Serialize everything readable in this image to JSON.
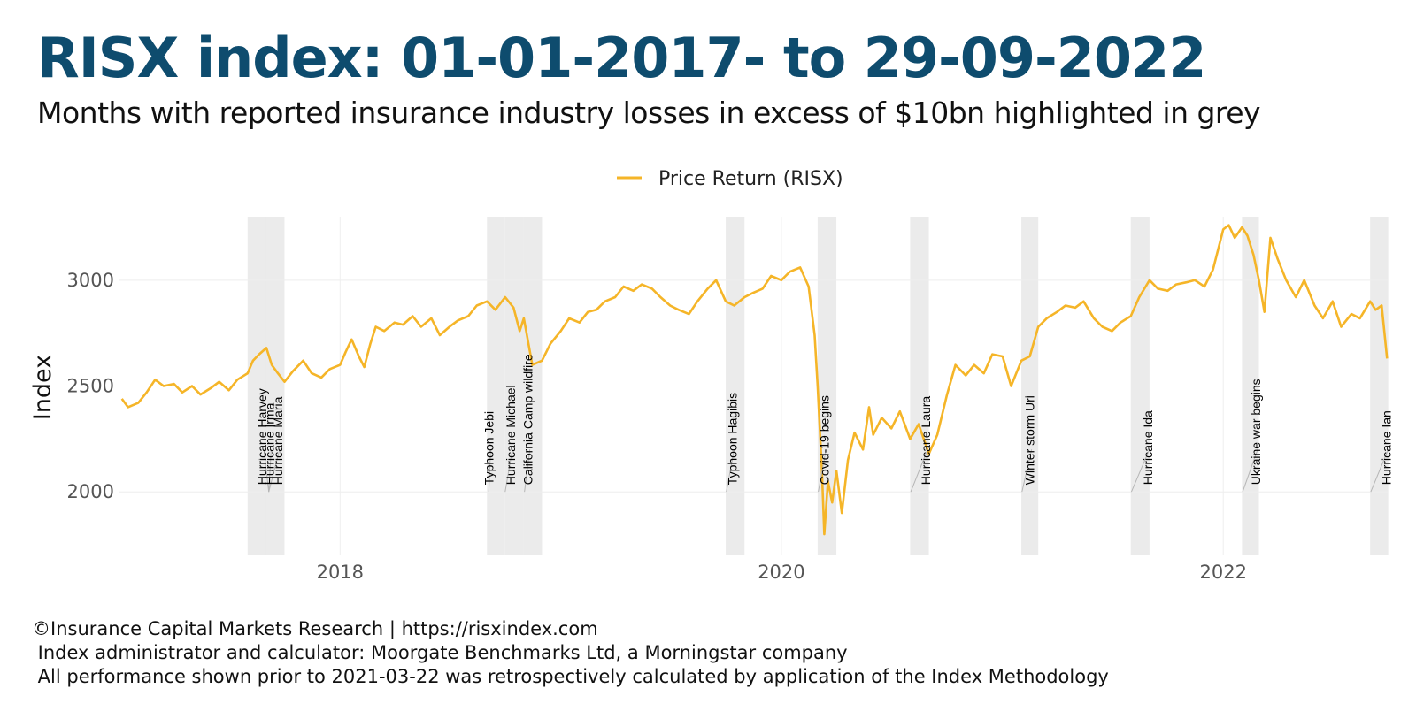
{
  "title": "RISX index: 01-01-2017- to 29-09-2022",
  "subtitle": "Months with reported insurance industry losses in excess of $10bn highlighted in grey",
  "footer": {
    "line1": "©Insurance Capital Markets Research | https://risxindex.com",
    "line2": " Index administrator and calculator: Moorgate Benchmarks Ltd, a Morningstar company",
    "line3": " All performance shown prior to 2021-03-22 was retrospectively calculated by application of the Index Methodology"
  },
  "colors": {
    "title": "#0e4c6e",
    "series": "#f5b528",
    "highlight_band": "#ebebeb",
    "gridline": "#eeeeee"
  },
  "chart_data": {
    "type": "line",
    "title": "RISX index: 01-01-2017- to 29-09-2022",
    "subtitle": "Months with reported insurance industry losses in excess of $10bn highlighted in grey",
    "xlabel": "",
    "ylabel": "Index",
    "xlim": [
      "2017-01-01",
      "2022-09-30"
    ],
    "ylim": [
      1700,
      3300
    ],
    "x_ticks": [
      {
        "date": "2018-01-01",
        "label": "2018"
      },
      {
        "date": "2020-01-01",
        "label": "2020"
      },
      {
        "date": "2022-01-01",
        "label": "2022"
      }
    ],
    "y_ticks": [
      2000,
      2500,
      3000
    ],
    "grid": true,
    "legend": {
      "position": "top",
      "entries": [
        "Price Return (RISX)"
      ]
    },
    "series": [
      {
        "name": "Price Return (RISX)",
        "color": "#f5b528",
        "x": [
          "2017-01-05",
          "2017-01-15",
          "2017-02-01",
          "2017-02-15",
          "2017-03-01",
          "2017-03-15",
          "2017-04-01",
          "2017-04-15",
          "2017-05-01",
          "2017-05-15",
          "2017-06-01",
          "2017-06-15",
          "2017-07-01",
          "2017-07-15",
          "2017-08-01",
          "2017-08-10",
          "2017-08-20",
          "2017-09-01",
          "2017-09-10",
          "2017-09-20",
          "2017-10-01",
          "2017-10-15",
          "2017-11-01",
          "2017-11-15",
          "2017-12-01",
          "2017-12-15",
          "2018-01-01",
          "2018-01-10",
          "2018-01-20",
          "2018-02-01",
          "2018-02-10",
          "2018-02-20",
          "2018-03-01",
          "2018-03-15",
          "2018-04-01",
          "2018-04-15",
          "2018-05-01",
          "2018-05-15",
          "2018-06-01",
          "2018-06-15",
          "2018-07-01",
          "2018-07-15",
          "2018-08-01",
          "2018-08-15",
          "2018-09-01",
          "2018-09-15",
          "2018-10-01",
          "2018-10-15",
          "2018-10-25",
          "2018-11-01",
          "2018-11-15",
          "2018-12-01",
          "2018-12-15",
          "2019-01-01",
          "2019-01-15",
          "2019-02-01",
          "2019-02-15",
          "2019-03-01",
          "2019-03-15",
          "2019-04-01",
          "2019-04-15",
          "2019-05-01",
          "2019-05-15",
          "2019-06-01",
          "2019-06-15",
          "2019-07-01",
          "2019-07-15",
          "2019-08-01",
          "2019-08-15",
          "2019-09-01",
          "2019-09-15",
          "2019-10-01",
          "2019-10-15",
          "2019-11-01",
          "2019-11-15",
          "2019-12-01",
          "2019-12-15",
          "2020-01-01",
          "2020-01-15",
          "2020-02-01",
          "2020-02-15",
          "2020-02-25",
          "2020-03-01",
          "2020-03-08",
          "2020-03-12",
          "2020-03-18",
          "2020-03-25",
          "2020-04-01",
          "2020-04-10",
          "2020-04-20",
          "2020-05-01",
          "2020-05-15",
          "2020-05-25",
          "2020-06-01",
          "2020-06-15",
          "2020-07-01",
          "2020-07-15",
          "2020-08-01",
          "2020-08-15",
          "2020-09-01",
          "2020-09-15",
          "2020-10-01",
          "2020-10-15",
          "2020-11-01",
          "2020-11-15",
          "2020-12-01",
          "2020-12-15",
          "2021-01-01",
          "2021-01-15",
          "2021-02-01",
          "2021-02-15",
          "2021-03-01",
          "2021-03-15",
          "2021-04-01",
          "2021-04-15",
          "2021-05-01",
          "2021-05-15",
          "2021-06-01",
          "2021-06-15",
          "2021-07-01",
          "2021-07-15",
          "2021-08-01",
          "2021-08-15",
          "2021-09-01",
          "2021-09-15",
          "2021-10-01",
          "2021-10-15",
          "2021-11-01",
          "2021-11-15",
          "2021-12-01",
          "2021-12-15",
          "2022-01-01",
          "2022-01-10",
          "2022-01-20",
          "2022-02-01",
          "2022-02-10",
          "2022-02-20",
          "2022-03-01",
          "2022-03-10",
          "2022-03-20",
          "2022-04-01",
          "2022-04-15",
          "2022-05-01",
          "2022-05-15",
          "2022-06-01",
          "2022-06-15",
          "2022-07-01",
          "2022-07-15",
          "2022-08-01",
          "2022-08-15",
          "2022-09-01",
          "2022-09-10",
          "2022-09-20",
          "2022-09-29"
        ],
        "y": [
          2440,
          2400,
          2420,
          2470,
          2530,
          2500,
          2510,
          2470,
          2500,
          2460,
          2490,
          2520,
          2480,
          2530,
          2560,
          2620,
          2650,
          2680,
          2600,
          2560,
          2520,
          2570,
          2620,
          2560,
          2540,
          2580,
          2600,
          2660,
          2720,
          2640,
          2590,
          2700,
          2780,
          2760,
          2800,
          2790,
          2830,
          2780,
          2820,
          2740,
          2780,
          2810,
          2830,
          2880,
          2900,
          2860,
          2920,
          2870,
          2760,
          2820,
          2600,
          2620,
          2700,
          2760,
          2820,
          2800,
          2850,
          2860,
          2900,
          2920,
          2970,
          2950,
          2980,
          2960,
          2920,
          2880,
          2860,
          2840,
          2900,
          2960,
          3000,
          2900,
          2880,
          2920,
          2940,
          2960,
          3020,
          3000,
          3040,
          3060,
          2970,
          2740,
          2500,
          2100,
          1800,
          2050,
          1950,
          2100,
          1900,
          2150,
          2280,
          2200,
          2400,
          2270,
          2350,
          2300,
          2380,
          2250,
          2320,
          2180,
          2270,
          2460,
          2600,
          2550,
          2600,
          2560,
          2650,
          2640,
          2500,
          2620,
          2640,
          2780,
          2820,
          2850,
          2880,
          2870,
          2900,
          2820,
          2780,
          2760,
          2800,
          2830,
          2920,
          3000,
          2960,
          2950,
          2980,
          2990,
          3000,
          2970,
          3050,
          3240,
          3260,
          3200,
          3250,
          3210,
          3120,
          3000,
          2850,
          3200,
          3100,
          3000,
          2920,
          3000,
          2880,
          2820,
          2900,
          2780,
          2840,
          2820,
          2900,
          2860,
          2880,
          2630
        ]
      }
    ],
    "highlight_periods": [
      {
        "start": "2017-08-01",
        "end": "2017-09-01"
      },
      {
        "start": "2017-09-01",
        "end": "2017-10-01"
      },
      {
        "start": "2018-09-01",
        "end": "2018-10-01"
      },
      {
        "start": "2018-10-01",
        "end": "2018-11-01"
      },
      {
        "start": "2018-11-01",
        "end": "2018-12-01"
      },
      {
        "start": "2019-10-01",
        "end": "2019-11-01"
      },
      {
        "start": "2020-03-01",
        "end": "2020-04-01"
      },
      {
        "start": "2020-08-01",
        "end": "2020-09-01"
      },
      {
        "start": "2021-02-01",
        "end": "2021-03-01"
      },
      {
        "start": "2021-08-01",
        "end": "2021-09-01"
      },
      {
        "start": "2022-02-01",
        "end": "2022-03-01"
      },
      {
        "start": "2022-09-01",
        "end": "2022-10-01"
      }
    ],
    "annotations": [
      {
        "text": "Hurricane Harvey",
        "date": "2017-08-25",
        "anchor_date": "2017-09-05",
        "anchor_y": 2000
      },
      {
        "text": "Hurricane Irma",
        "date": "2017-09-06",
        "anchor_date": "2017-09-05",
        "anchor_y": 2000
      },
      {
        "text": "Hurricane Maria",
        "date": "2017-09-20",
        "anchor_date": "2017-09-05",
        "anchor_y": 2000
      },
      {
        "text": "Typhoon Jebi",
        "date": "2018-09-04",
        "anchor_date": "2018-09-04",
        "anchor_y": 2000
      },
      {
        "text": "Hurricane Michael",
        "date": "2018-10-10",
        "anchor_date": "2018-10-01",
        "anchor_y": 2000
      },
      {
        "text": "California Camp wildfire",
        "date": "2018-11-08",
        "anchor_date": "2018-11-02",
        "anchor_y": 2000
      },
      {
        "text": "Typhoon Hagibis",
        "date": "2019-10-12",
        "anchor_date": "2019-10-02",
        "anchor_y": 2000
      },
      {
        "text": "Covid-19 begins",
        "date": "2020-03-12",
        "anchor_date": "2020-03-02",
        "anchor_y": 2000
      },
      {
        "text": "Hurricane Laura",
        "date": "2020-08-27",
        "anchor_date": "2020-08-02",
        "anchor_y": 2000
      },
      {
        "text": "Winter storm Uri",
        "date": "2021-02-15",
        "anchor_date": "2021-02-02",
        "anchor_y": 2000
      },
      {
        "text": "Hurricane Ida",
        "date": "2021-08-29",
        "anchor_date": "2021-08-02",
        "anchor_y": 2000
      },
      {
        "text": "Ukraine war begins",
        "date": "2022-02-24",
        "anchor_date": "2022-02-02",
        "anchor_y": 2000
      },
      {
        "text": "Hurricane Ian",
        "date": "2022-09-28",
        "anchor_date": "2022-09-02",
        "anchor_y": 2000
      }
    ]
  }
}
